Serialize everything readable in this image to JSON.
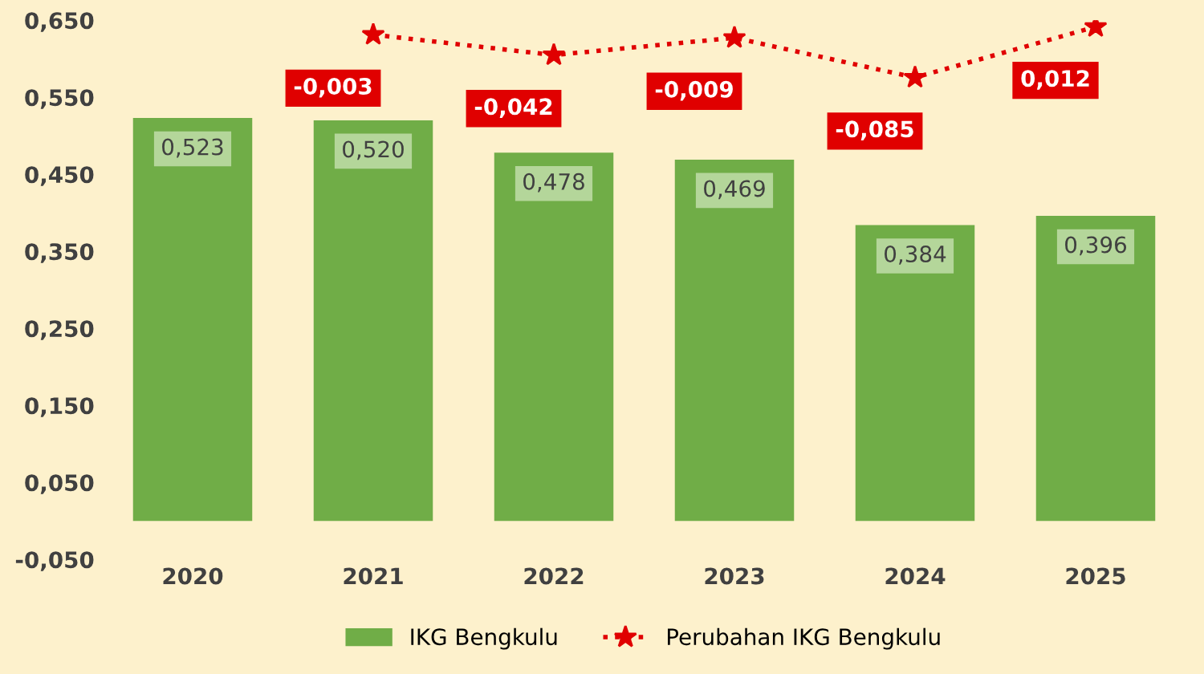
{
  "chart_data": {
    "type": "bar",
    "categories": [
      "2020",
      "2021",
      "2022",
      "2023",
      "2024",
      "2025"
    ],
    "series": [
      {
        "name": "IKG Bengkulu",
        "color": "#70ad47",
        "values": [
          0.523,
          0.52,
          0.478,
          0.469,
          0.384,
          0.396
        ],
        "value_labels": [
          "0,523",
          "0,520",
          "0,478",
          "0,469",
          "0,384",
          "0,396"
        ]
      },
      {
        "name": "Perubahan IKG Bengkulu",
        "type": "line",
        "axis": "y2",
        "color": "#e00000",
        "marker": "star",
        "line_style": "dotted",
        "values": [
          null,
          -0.003,
          -0.042,
          -0.009,
          -0.085,
          0.012
        ],
        "value_labels": [
          null,
          "-0,003",
          "-0,042",
          "-0,009",
          "-0,085",
          "0,012"
        ]
      }
    ],
    "ylim": [
      -0.05,
      0.65
    ],
    "yticks": [
      {
        "value": -0.05,
        "label": "-0,050"
      },
      {
        "value": 0.05,
        "label": "0,050"
      },
      {
        "value": 0.15,
        "label": "0,150"
      },
      {
        "value": 0.25,
        "label": "0,250"
      },
      {
        "value": 0.35,
        "label": "0,350"
      },
      {
        "value": 0.45,
        "label": "0,450"
      },
      {
        "value": 0.55,
        "label": "0,550"
      },
      {
        "value": 0.65,
        "label": "0,650"
      }
    ],
    "tick_labels": "xy",
    "grid": false,
    "legend": "bottom"
  }
}
